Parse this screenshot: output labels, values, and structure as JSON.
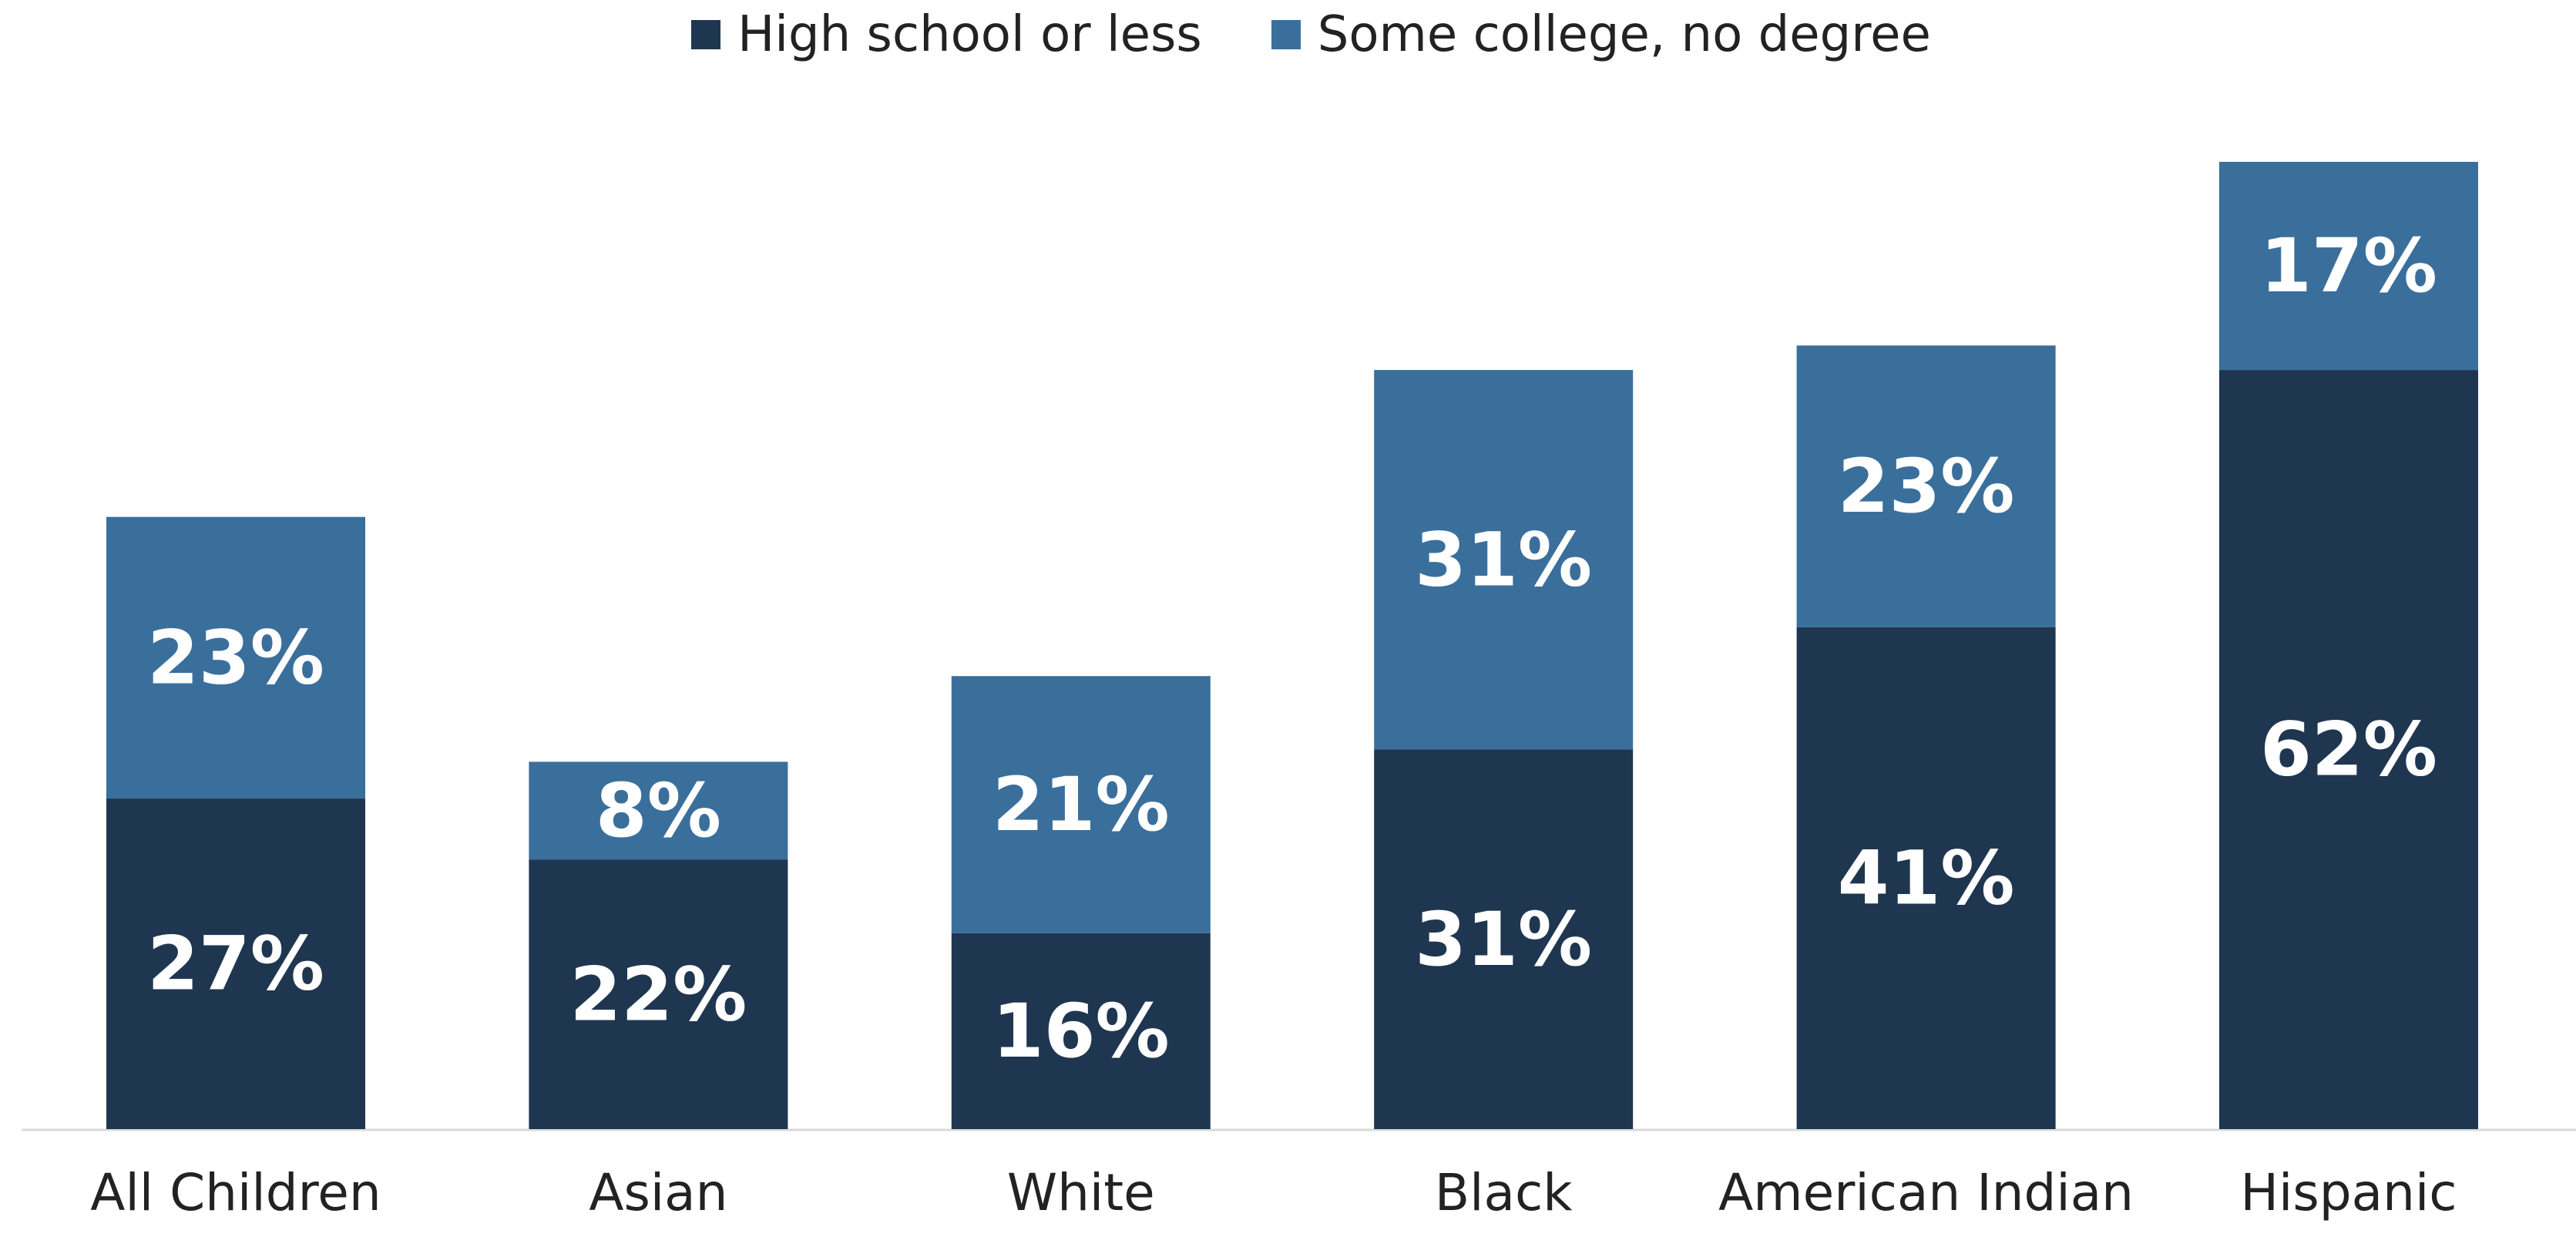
{
  "chart_data": {
    "type": "bar",
    "stacked": true,
    "categories": [
      "All Children",
      "Asian",
      "White",
      "Black",
      "American Indian",
      "Hispanic"
    ],
    "series": [
      {
        "name": "High school or less",
        "values": [
          27,
          22,
          16,
          31,
          41,
          62
        ],
        "labels": [
          "27%",
          "22%",
          "16%",
          "31%",
          "41%",
          "62%"
        ],
        "color": "#1f3650"
      },
      {
        "name": "Some college, no degree",
        "values": [
          23,
          8,
          21,
          31,
          23,
          17
        ],
        "labels": [
          "23%",
          "8%",
          "21%",
          "31%",
          "23%",
          "17%"
        ],
        "color": "#3a6f9c"
      }
    ],
    "ylim": [
      0,
      79
    ],
    "grid": false,
    "legend_position": "top-center",
    "axis_line_color": "#d9d9d9"
  }
}
